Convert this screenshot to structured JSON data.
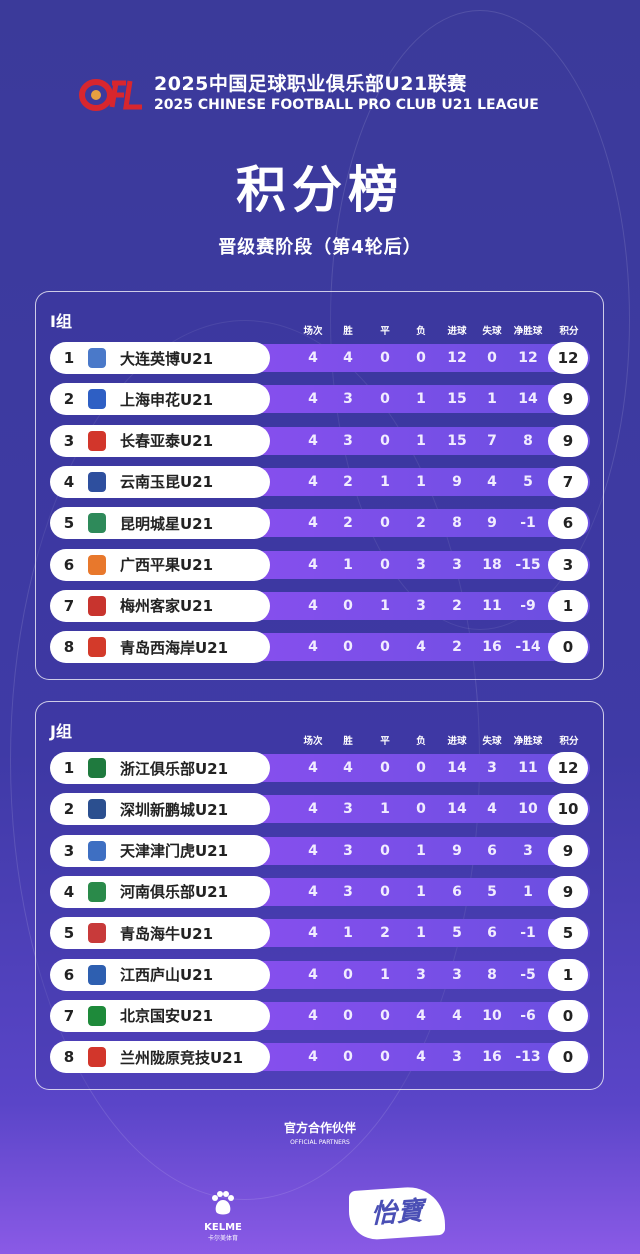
{
  "header": {
    "logo_text": "CFL",
    "title_cn": "2025中国足球职业俱乐部U21联赛",
    "title_en": "2025 CHINESE FOOTBALL PRO CLUB U21 LEAGUE"
  },
  "title": "积分榜",
  "subtitle": "晋级赛阶段（第4轮后）",
  "columns": [
    "场次",
    "胜",
    "平",
    "负",
    "进球",
    "失球",
    "净胜球",
    "积分"
  ],
  "groups": [
    {
      "name": "I组",
      "rows": [
        {
          "rank": 1,
          "team": "大连英博U21",
          "badge_color": "#4a79c9",
          "p": 4,
          "w": 4,
          "d": 0,
          "l": 0,
          "gf": 12,
          "ga": 0,
          "gd": 12,
          "pts": 12
        },
        {
          "rank": 2,
          "team": "上海申花U21",
          "badge_color": "#2e5fc4",
          "p": 4,
          "w": 3,
          "d": 0,
          "l": 1,
          "gf": 15,
          "ga": 1,
          "gd": 14,
          "pts": 9
        },
        {
          "rank": 3,
          "team": "长春亚泰U21",
          "badge_color": "#d2362b",
          "p": 4,
          "w": 3,
          "d": 0,
          "l": 1,
          "gf": 15,
          "ga": 7,
          "gd": 8,
          "pts": 9
        },
        {
          "rank": 4,
          "team": "云南玉昆U21",
          "badge_color": "#2e4f9e",
          "p": 4,
          "w": 2,
          "d": 1,
          "l": 1,
          "gf": 9,
          "ga": 4,
          "gd": 5,
          "pts": 7
        },
        {
          "rank": 5,
          "team": "昆明城星U21",
          "badge_color": "#2e8a5a",
          "p": 4,
          "w": 2,
          "d": 0,
          "l": 2,
          "gf": 8,
          "ga": 9,
          "gd": -1,
          "pts": 6
        },
        {
          "rank": 6,
          "team": "广西平果U21",
          "badge_color": "#e8782c",
          "p": 4,
          "w": 1,
          "d": 0,
          "l": 3,
          "gf": 3,
          "ga": 18,
          "gd": -15,
          "pts": 3
        },
        {
          "rank": 7,
          "team": "梅州客家U21",
          "badge_color": "#c8342e",
          "p": 4,
          "w": 0,
          "d": 1,
          "l": 3,
          "gf": 2,
          "ga": 11,
          "gd": -9,
          "pts": 1
        },
        {
          "rank": 8,
          "team": "青岛西海岸U21",
          "badge_color": "#d33a2a",
          "p": 4,
          "w": 0,
          "d": 0,
          "l": 4,
          "gf": 2,
          "ga": 16,
          "gd": -14,
          "pts": 0
        }
      ]
    },
    {
      "name": "J组",
      "rows": [
        {
          "rank": 1,
          "team": "浙江俱乐部U21",
          "badge_color": "#1f7a3e",
          "p": 4,
          "w": 4,
          "d": 0,
          "l": 0,
          "gf": 14,
          "ga": 3,
          "gd": 11,
          "pts": 12
        },
        {
          "rank": 2,
          "team": "深圳新鹏城U21",
          "badge_color": "#2b4f8f",
          "p": 4,
          "w": 3,
          "d": 1,
          "l": 0,
          "gf": 14,
          "ga": 4,
          "gd": 10,
          "pts": 10
        },
        {
          "rank": 3,
          "team": "天津津门虎U21",
          "badge_color": "#3e6fc2",
          "p": 4,
          "w": 3,
          "d": 0,
          "l": 1,
          "gf": 9,
          "ga": 6,
          "gd": 3,
          "pts": 9
        },
        {
          "rank": 4,
          "team": "河南俱乐部U21",
          "badge_color": "#2a8a4a",
          "p": 4,
          "w": 3,
          "d": 0,
          "l": 1,
          "gf": 6,
          "ga": 5,
          "gd": 1,
          "pts": 9
        },
        {
          "rank": 5,
          "team": "青岛海牛U21",
          "badge_color": "#c83a3a",
          "p": 4,
          "w": 1,
          "d": 2,
          "l": 1,
          "gf": 5,
          "ga": 6,
          "gd": -1,
          "pts": 5
        },
        {
          "rank": 6,
          "team": "江西庐山U21",
          "badge_color": "#2e5fb0",
          "p": 4,
          "w": 0,
          "d": 1,
          "l": 3,
          "gf": 3,
          "ga": 8,
          "gd": -5,
          "pts": 1
        },
        {
          "rank": 7,
          "team": "北京国安U21",
          "badge_color": "#1e8a3a",
          "p": 4,
          "w": 0,
          "d": 0,
          "l": 4,
          "gf": 4,
          "ga": 10,
          "gd": -6,
          "pts": 0
        },
        {
          "rank": 8,
          "team": "兰州陇原竞技U21",
          "badge_color": "#d2362b",
          "p": 4,
          "w": 0,
          "d": 0,
          "l": 4,
          "gf": 3,
          "ga": 16,
          "gd": -13,
          "pts": 0
        }
      ]
    }
  ],
  "partners": {
    "title_cn": "官方合作伙伴",
    "title_en": "OFFICIAL PARTNERS",
    "kelme": "KELME",
    "kelme_cn": "卡尔美体育",
    "yibao": "怡寶"
  },
  "colors": {
    "background": "#3d3aa0",
    "row_band": "#8b4ff0",
    "logo_red": "#d8262e"
  }
}
